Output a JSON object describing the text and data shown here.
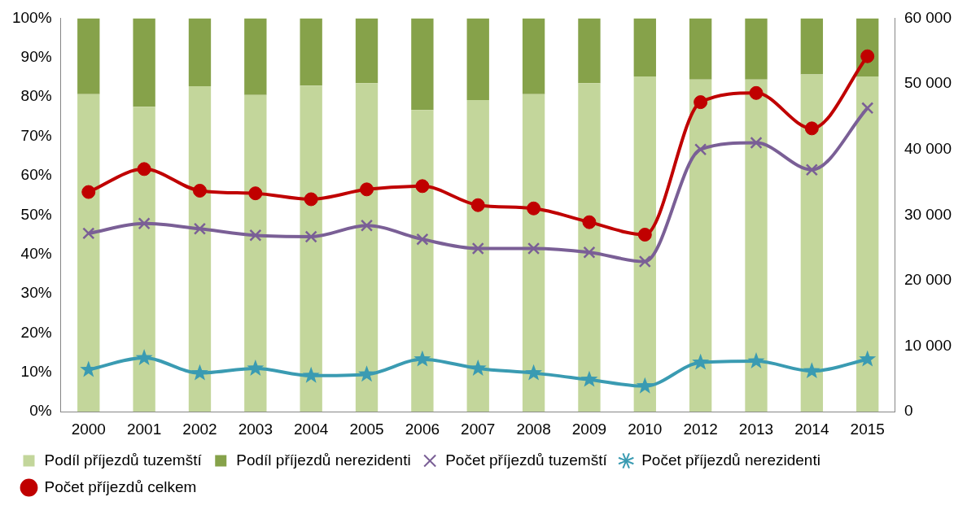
{
  "chart_data": {
    "type": "bar",
    "stacked": true,
    "categories": [
      "2000",
      "2001",
      "2002",
      "2003",
      "2004",
      "2005",
      "2006",
      "2007",
      "2008",
      "2009",
      "2010",
      "2012",
      "2013",
      "2014",
      "2015"
    ],
    "series": [
      {
        "name": "Podíl příjezdů tuzemští",
        "color": "#c3d69b",
        "values": [
          80.7,
          77.5,
          82.7,
          80.5,
          82.9,
          83.5,
          76.7,
          79.2,
          80.7,
          83.5,
          85.2,
          84.4,
          84.4,
          85.7,
          85.2
        ]
      },
      {
        "name": "Podíl příjezdů nerezidenti",
        "color": "#86a24a",
        "values": [
          19.3,
          22.5,
          17.3,
          19.5,
          17.1,
          16.5,
          23.3,
          20.8,
          19.3,
          16.5,
          14.8,
          15.6,
          15.6,
          14.3,
          14.8
        ]
      },
      {
        "name": "Počet příjezdů tuzemští",
        "type": "line",
        "axis": "y2",
        "marker": "cross",
        "color": "#7a5f96",
        "values": [
          27200,
          28700,
          27900,
          26900,
          26700,
          28400,
          26300,
          24900,
          24900,
          24300,
          22900,
          40000,
          41000,
          36900,
          46300
        ]
      },
      {
        "name": "Počet příjezdů nerezidenti",
        "type": "line",
        "axis": "y2",
        "marker": "star",
        "color": "#3a9bb2",
        "values": [
          6400,
          8200,
          5900,
          6600,
          5500,
          5700,
          8000,
          6600,
          5900,
          4900,
          3900,
          7500,
          7700,
          6200,
          8000
        ]
      },
      {
        "name": "Počet příjezdů celkem",
        "type": "line",
        "axis": "y2",
        "marker": "circle",
        "color": "#c00000",
        "values": [
          33500,
          37000,
          33700,
          33300,
          32400,
          33900,
          34400,
          31500,
          31000,
          28900,
          27000,
          47200,
          48600,
          43200,
          54200
        ]
      }
    ],
    "ylim": [
      0,
      100
    ],
    "yticks": [
      {
        "value": 0,
        "label": "0%"
      },
      {
        "value": 10,
        "label": "10%"
      },
      {
        "value": 20,
        "label": "20%"
      },
      {
        "value": 30,
        "label": "30%"
      },
      {
        "value": 40,
        "label": "40%"
      },
      {
        "value": 50,
        "label": "50%"
      },
      {
        "value": 60,
        "label": "60%"
      },
      {
        "value": 70,
        "label": "70%"
      },
      {
        "value": 80,
        "label": "80%"
      },
      {
        "value": 90,
        "label": "90%"
      },
      {
        "value": 100,
        "label": "100%"
      }
    ],
    "y2lim": [
      0,
      60000
    ],
    "y2ticks": [
      0,
      {
        "value": 10000,
        "label": "10 000"
      },
      {
        "value": 20000,
        "label": "20 000"
      },
      {
        "value": 30000,
        "label": "30 000"
      },
      {
        "value": 40000,
        "label": "40 000"
      },
      {
        "value": 50000,
        "label": "50 000"
      },
      {
        "value": 60000,
        "label": "60 000"
      }
    ],
    "grid": false,
    "legend": "bottom"
  }
}
